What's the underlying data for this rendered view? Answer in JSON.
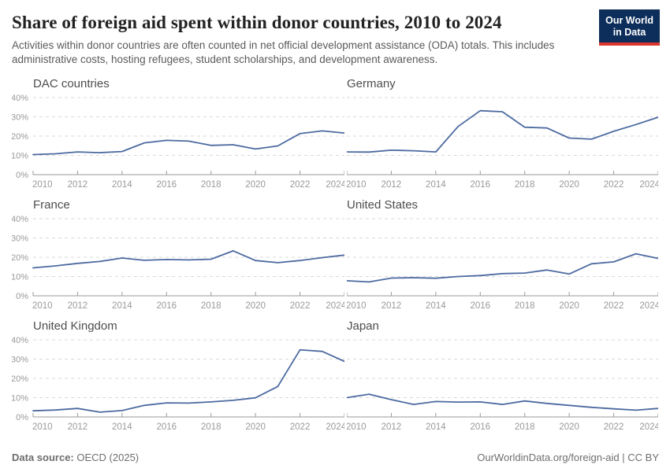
{
  "header": {
    "title": "Share of foreign aid spent within donor countries, 2010 to 2024",
    "subtitle": "Activities within donor countries are often counted in net official development assistance (ODA) totals. This includes administrative costs, hosting refugees, student scholarships, and development awareness.",
    "logo_line1": "Our World",
    "logo_line2": "in Data"
  },
  "styles": {
    "line_color": "#4c6aa0",
    "grid_color": "#d9d9d9",
    "axis_color": "#9a9a9a",
    "label_color": "#999999",
    "logo_bg": "#0d2e5b",
    "logo_accent": "#dc352d"
  },
  "axis": {
    "x_range": [
      2010,
      2024
    ],
    "x_ticks": [
      2010,
      2012,
      2014,
      2016,
      2018,
      2020,
      2022,
      2024
    ],
    "ylim": [
      0,
      40
    ],
    "y_ticks": [
      0,
      10,
      20,
      30,
      40
    ],
    "y_tick_labels": [
      "0%",
      "10%",
      "20%",
      "30%",
      "40%"
    ],
    "grid": "dashed-horizontal",
    "legend": "none"
  },
  "chart_data": [
    {
      "type": "line",
      "title": "DAC countries",
      "show_y_labels": true,
      "x": [
        2010,
        2011,
        2012,
        2013,
        2014,
        2015,
        2016,
        2017,
        2018,
        2019,
        2020,
        2021,
        2022,
        2023,
        2024
      ],
      "values": [
        10.4,
        10.8,
        11.8,
        11.4,
        12.0,
        16.5,
        17.8,
        17.4,
        15.2,
        15.5,
        13.3,
        14.9,
        21.3,
        22.7,
        21.6
      ]
    },
    {
      "type": "line",
      "title": "Germany",
      "show_y_labels": false,
      "x": [
        2010,
        2011,
        2012,
        2013,
        2014,
        2015,
        2016,
        2017,
        2018,
        2019,
        2020,
        2021,
        2022,
        2023,
        2024
      ],
      "values": [
        11.8,
        11.7,
        12.7,
        12.4,
        11.8,
        25.0,
        33.2,
        32.6,
        24.6,
        24.2,
        19.0,
        18.4,
        22.5,
        26.0,
        29.8
      ]
    },
    {
      "type": "line",
      "title": "France",
      "show_y_labels": true,
      "x": [
        2010,
        2011,
        2012,
        2013,
        2014,
        2015,
        2016,
        2017,
        2018,
        2019,
        2020,
        2021,
        2022,
        2023,
        2024
      ],
      "values": [
        14.5,
        15.5,
        16.8,
        17.8,
        19.6,
        18.4,
        18.8,
        18.6,
        19.0,
        23.3,
        18.3,
        17.2,
        18.3,
        19.8,
        21.1
      ]
    },
    {
      "type": "line",
      "title": "United States",
      "show_y_labels": false,
      "x": [
        2010,
        2011,
        2012,
        2013,
        2014,
        2015,
        2016,
        2017,
        2018,
        2019,
        2020,
        2021,
        2022,
        2023,
        2024
      ],
      "values": [
        7.8,
        7.2,
        9.2,
        9.4,
        9.1,
        10.0,
        10.5,
        11.5,
        11.8,
        13.4,
        11.3,
        16.6,
        17.6,
        21.8,
        19.4
      ]
    },
    {
      "type": "line",
      "title": "United Kingdom",
      "show_y_labels": true,
      "x": [
        2010,
        2011,
        2012,
        2013,
        2014,
        2015,
        2016,
        2017,
        2018,
        2019,
        2020,
        2021,
        2022,
        2023,
        2024
      ],
      "values": [
        3.2,
        3.6,
        4.4,
        2.5,
        3.3,
        6.0,
        7.3,
        7.2,
        7.8,
        8.6,
        9.9,
        15.8,
        34.8,
        34.0,
        28.8
      ]
    },
    {
      "type": "line",
      "title": "Japan",
      "show_y_labels": false,
      "x": [
        2010,
        2011,
        2012,
        2013,
        2014,
        2015,
        2016,
        2017,
        2018,
        2019,
        2020,
        2021,
        2022,
        2023,
        2024
      ],
      "values": [
        10.0,
        11.8,
        9.0,
        6.5,
        8.0,
        7.7,
        7.8,
        6.5,
        8.3,
        7.0,
        6.0,
        5.0,
        4.2,
        3.5,
        4.4
      ]
    }
  ],
  "footer": {
    "source_label": "Data source:",
    "source_value": "OECD (2025)",
    "credit_link": "OurWorldinData.org/foreign-aid",
    "credit_license": " | CC BY"
  }
}
